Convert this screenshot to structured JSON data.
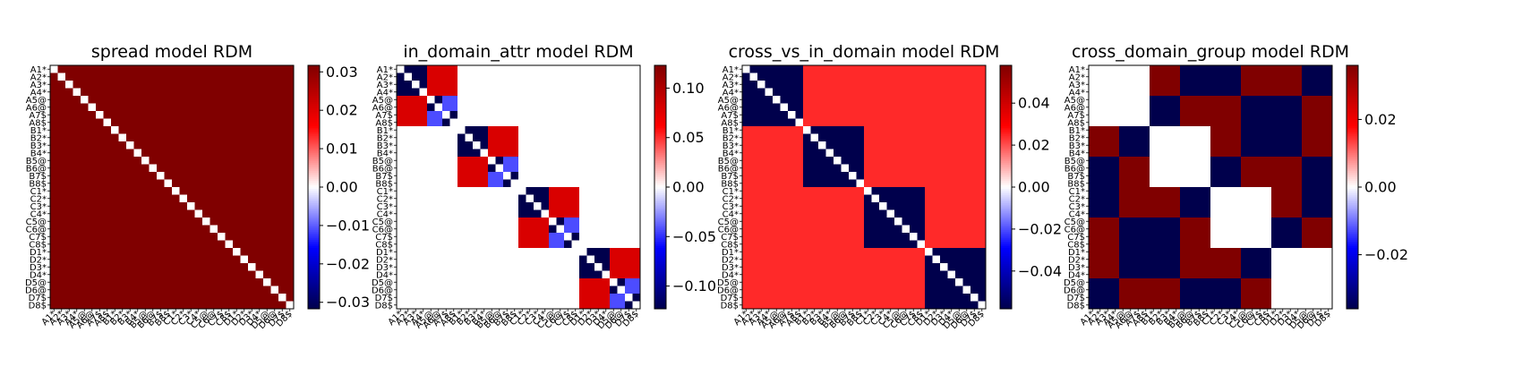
{
  "chart_data": [
    {
      "type": "heatmap",
      "title": "spread model RDM",
      "model": "spread",
      "colormap": "seismic",
      "vlim": [
        -0.0317,
        0.0317
      ],
      "colorbar_ticks": [
        -0.03,
        -0.02,
        -0.01,
        0.0,
        0.01,
        0.02,
        0.03
      ],
      "colorbar_tick_labels": [
        "−0.03",
        "−0.02",
        "−0.01",
        "0.00",
        "0.01",
        "0.02",
        "0.03"
      ],
      "grid": false
    },
    {
      "type": "heatmap",
      "title": "in_domain_attr model RDM",
      "model": "in_domain_attr",
      "colormap": "seismic",
      "vlim": [
        -0.123,
        0.123
      ],
      "colorbar_ticks": [
        -0.1,
        -0.05,
        0.0,
        0.05,
        0.1
      ],
      "colorbar_tick_labels": [
        "−0.10",
        "−0.05",
        "0.00",
        "0.05",
        "0.10"
      ],
      "grid": false
    },
    {
      "type": "heatmap",
      "title": "cross_vs_in_domain model RDM",
      "model": "cross_vs_in_domain",
      "colormap": "seismic",
      "vlim": [
        -0.058,
        0.058
      ],
      "colorbar_ticks": [
        -0.04,
        -0.02,
        0.0,
        0.02,
        0.04
      ],
      "colorbar_tick_labels": [
        "−0.04",
        "−0.02",
        "0.00",
        "0.02",
        "0.04"
      ],
      "grid": false
    },
    {
      "type": "heatmap",
      "title": "cross_domain_group model RDM",
      "model": "cross_domain_group",
      "colormap": "seismic",
      "vlim": [
        -0.036,
        0.036
      ],
      "colorbar_ticks": [
        -0.02,
        0.0,
        0.02
      ],
      "colorbar_tick_labels": [
        "−0.02",
        "0.00",
        "0.02"
      ],
      "grid": false
    }
  ],
  "labels": [
    "A1*",
    "A2*",
    "A3*",
    "A4*",
    "A5@",
    "A6@",
    "A7$",
    "A8$",
    "B1*",
    "B2*",
    "B3*",
    "B4*",
    "B5@",
    "B6@",
    "B7$",
    "B8$",
    "C1*",
    "C2*",
    "C3*",
    "C4*",
    "C5@",
    "C6@",
    "C7$",
    "C8$",
    "D1*",
    "D2*",
    "D3*",
    "D4*",
    "D5@",
    "D6@",
    "D7$",
    "D8$"
  ]
}
